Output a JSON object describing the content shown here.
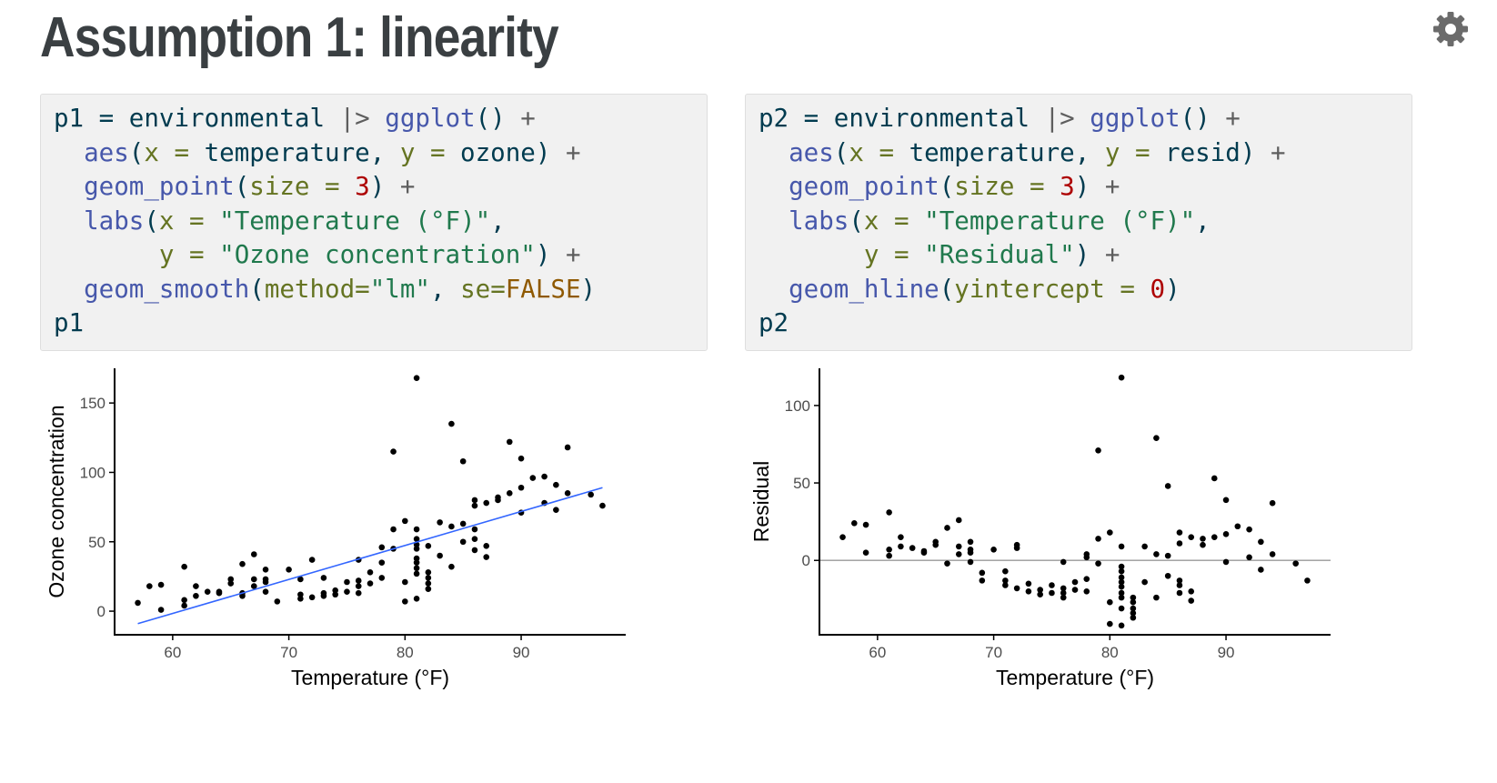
{
  "slide": {
    "title": "Assumption 1: linearity"
  },
  "icons": {
    "settings": "gear-icon"
  },
  "code_blocks": [
    {
      "id": "p1",
      "lines": [
        [
          [
            "p1 = environmental ",
            "plain"
          ],
          [
            "|>",
            "op"
          ],
          [
            " ",
            "plain"
          ],
          [
            "ggplot",
            "fn"
          ],
          [
            "() ",
            "plain"
          ],
          [
            "+",
            "op"
          ]
        ],
        [
          [
            "  ",
            "plain"
          ],
          [
            "aes",
            "fn"
          ],
          [
            "(",
            "plain"
          ],
          [
            "x =",
            "ar"
          ],
          [
            " temperature, ",
            "plain"
          ],
          [
            "y =",
            "ar"
          ],
          [
            " ozone) ",
            "plain"
          ],
          [
            "+",
            "op"
          ]
        ],
        [
          [
            "  ",
            "plain"
          ],
          [
            "geom_point",
            "fn"
          ],
          [
            "(",
            "plain"
          ],
          [
            "size =",
            "ar"
          ],
          [
            " ",
            "plain"
          ],
          [
            "3",
            "nm"
          ],
          [
            ") ",
            "plain"
          ],
          [
            "+",
            "op"
          ]
        ],
        [
          [
            "  ",
            "plain"
          ],
          [
            "labs",
            "fn"
          ],
          [
            "(",
            "plain"
          ],
          [
            "x =",
            "ar"
          ],
          [
            " ",
            "plain"
          ],
          [
            "\"Temperature (°F)\"",
            "st"
          ],
          [
            ",",
            "plain"
          ]
        ],
        [
          [
            "       ",
            "plain"
          ],
          [
            "y =",
            "ar"
          ],
          [
            " ",
            "plain"
          ],
          [
            "\"Ozone concentration\"",
            "st"
          ],
          [
            ") ",
            "plain"
          ],
          [
            "+",
            "op"
          ]
        ],
        [
          [
            "  ",
            "plain"
          ],
          [
            "geom_smooth",
            "fn"
          ],
          [
            "(",
            "plain"
          ],
          [
            "method=",
            "ar"
          ],
          [
            "\"lm\"",
            "st"
          ],
          [
            ", ",
            "plain"
          ],
          [
            "se=",
            "ar"
          ],
          [
            "FALSE",
            "cn"
          ],
          [
            ")",
            "plain"
          ]
        ],
        [
          [
            "p1",
            "plain"
          ]
        ]
      ]
    },
    {
      "id": "p2",
      "lines": [
        [
          [
            "p2 = environmental ",
            "plain"
          ],
          [
            "|>",
            "op"
          ],
          [
            " ",
            "plain"
          ],
          [
            "ggplot",
            "fn"
          ],
          [
            "() ",
            "plain"
          ],
          [
            "+",
            "op"
          ]
        ],
        [
          [
            "  ",
            "plain"
          ],
          [
            "aes",
            "fn"
          ],
          [
            "(",
            "plain"
          ],
          [
            "x =",
            "ar"
          ],
          [
            " temperature, ",
            "plain"
          ],
          [
            "y =",
            "ar"
          ],
          [
            " resid) ",
            "plain"
          ],
          [
            "+",
            "op"
          ]
        ],
        [
          [
            "  ",
            "plain"
          ],
          [
            "geom_point",
            "fn"
          ],
          [
            "(",
            "plain"
          ],
          [
            "size =",
            "ar"
          ],
          [
            " ",
            "plain"
          ],
          [
            "3",
            "nm"
          ],
          [
            ") ",
            "plain"
          ],
          [
            "+",
            "op"
          ]
        ],
        [
          [
            "  ",
            "plain"
          ],
          [
            "labs",
            "fn"
          ],
          [
            "(",
            "plain"
          ],
          [
            "x =",
            "ar"
          ],
          [
            " ",
            "plain"
          ],
          [
            "\"Temperature (°F)\"",
            "st"
          ],
          [
            ",",
            "plain"
          ]
        ],
        [
          [
            "       ",
            "plain"
          ],
          [
            "y =",
            "ar"
          ],
          [
            " ",
            "plain"
          ],
          [
            "\"Residual\"",
            "st"
          ],
          [
            ") ",
            "plain"
          ],
          [
            "+",
            "op"
          ]
        ],
        [
          [
            "  ",
            "plain"
          ],
          [
            "geom_hline",
            "fn"
          ],
          [
            "(",
            "plain"
          ],
          [
            "yintercept =",
            "ar"
          ],
          [
            " ",
            "plain"
          ],
          [
            "0",
            "nm"
          ],
          [
            ")",
            "plain"
          ]
        ],
        [
          [
            "p2",
            "plain"
          ]
        ]
      ]
    }
  ],
  "colors": {
    "fn": "#4758ab",
    "ar": "#657422",
    "st": "#20794d",
    "nm": "#ad0000",
    "cn": "#8f5902",
    "op": "#5e5e5e",
    "point": "#000000",
    "smooth_line": "#3366ff",
    "hline": "#999999",
    "axis": "#000000",
    "tick_label": "#4d4d4d"
  },
  "chart_data": [
    {
      "type": "scatter",
      "xlabel": "Temperature (°F)",
      "ylabel": "Ozone concentration",
      "xlim": [
        55,
        99
      ],
      "ylim": [
        -17,
        175
      ],
      "xticks": [
        60,
        70,
        80,
        90
      ],
      "yticks": [
        0,
        50,
        100,
        150
      ],
      "grid": false,
      "smooth": {
        "method": "lm",
        "x": [
          57,
          97
        ],
        "y": [
          -9,
          89
        ]
      },
      "points": [
        [
          57,
          6
        ],
        [
          58,
          18
        ],
        [
          59,
          1
        ],
        [
          59,
          19
        ],
        [
          61,
          4
        ],
        [
          61,
          8
        ],
        [
          61,
          32
        ],
        [
          62,
          11
        ],
        [
          62,
          18
        ],
        [
          63,
          14
        ],
        [
          64,
          13
        ],
        [
          64,
          14
        ],
        [
          65,
          20
        ],
        [
          65,
          23
        ],
        [
          66,
          11
        ],
        [
          66,
          13
        ],
        [
          66,
          34
        ],
        [
          67,
          18
        ],
        [
          67,
          23
        ],
        [
          67,
          41
        ],
        [
          68,
          14
        ],
        [
          68,
          21
        ],
        [
          68,
          23
        ],
        [
          68,
          30
        ],
        [
          69,
          7
        ],
        [
          70,
          30
        ],
        [
          71,
          9
        ],
        [
          71,
          12
        ],
        [
          71,
          23
        ],
        [
          72,
          10
        ],
        [
          72,
          37
        ],
        [
          73,
          11
        ],
        [
          73,
          13
        ],
        [
          73,
          24
        ],
        [
          74,
          12
        ],
        [
          74,
          15
        ],
        [
          75,
          14
        ],
        [
          75,
          21
        ],
        [
          76,
          13
        ],
        [
          76,
          18
        ],
        [
          76,
          22
        ],
        [
          76,
          37
        ],
        [
          77,
          20
        ],
        [
          77,
          28
        ],
        [
          78,
          24
        ],
        [
          78,
          35
        ],
        [
          78,
          46
        ],
        [
          79,
          45
        ],
        [
          79,
          59
        ],
        [
          79,
          115
        ],
        [
          80,
          7
        ],
        [
          80,
          21
        ],
        [
          80,
          65
        ],
        [
          81,
          9
        ],
        [
          81,
          27
        ],
        [
          81,
          31
        ],
        [
          81,
          35
        ],
        [
          81,
          38
        ],
        [
          81,
          45
        ],
        [
          81,
          48
        ],
        [
          81,
          52
        ],
        [
          81,
          59
        ],
        [
          81,
          168
        ],
        [
          82,
          16
        ],
        [
          82,
          20
        ],
        [
          82,
          24
        ],
        [
          82,
          28
        ],
        [
          82,
          47
        ],
        [
          83,
          40
        ],
        [
          83,
          64
        ],
        [
          84,
          32
        ],
        [
          84,
          61
        ],
        [
          84,
          135
        ],
        [
          85,
          50
        ],
        [
          85,
          63
        ],
        [
          85,
          108
        ],
        [
          86,
          44
        ],
        [
          86,
          52
        ],
        [
          86,
          59
        ],
        [
          86,
          76
        ],
        [
          86,
          80
        ],
        [
          87,
          39
        ],
        [
          87,
          47
        ],
        [
          87,
          78
        ],
        [
          88,
          80
        ],
        [
          88,
          82
        ],
        [
          89,
          85
        ],
        [
          89,
          122
        ],
        [
          90,
          71
        ],
        [
          90,
          89
        ],
        [
          90,
          110
        ],
        [
          91,
          96
        ],
        [
          92,
          78
        ],
        [
          92,
          97
        ],
        [
          93,
          73
        ],
        [
          93,
          91
        ],
        [
          94,
          85
        ],
        [
          94,
          118
        ],
        [
          96,
          84
        ],
        [
          97,
          76
        ]
      ]
    },
    {
      "type": "scatter",
      "xlabel": "Temperature (°F)",
      "ylabel": "Residual",
      "xlim": [
        55,
        99
      ],
      "ylim": [
        -48,
        124
      ],
      "xticks": [
        60,
        70,
        80,
        90
      ],
      "yticks": [
        0,
        50,
        100
      ],
      "grid": false,
      "hline": 0,
      "points": [
        [
          57,
          15
        ],
        [
          58,
          24
        ],
        [
          59,
          5
        ],
        [
          59,
          23
        ],
        [
          61,
          3
        ],
        [
          61,
          7
        ],
        [
          61,
          31
        ],
        [
          62,
          9
        ],
        [
          62,
          15
        ],
        [
          63,
          8
        ],
        [
          64,
          6
        ],
        [
          64,
          5
        ],
        [
          65,
          10
        ],
        [
          65,
          12
        ],
        [
          66,
          -2
        ],
        [
          66,
          21
        ],
        [
          67,
          4
        ],
        [
          67,
          9
        ],
        [
          67,
          26
        ],
        [
          68,
          -1
        ],
        [
          68,
          5
        ],
        [
          68,
          7
        ],
        [
          68,
          12
        ],
        [
          69,
          -8
        ],
        [
          69,
          -13
        ],
        [
          70,
          7
        ],
        [
          71,
          -7
        ],
        [
          71,
          -13
        ],
        [
          71,
          -16
        ],
        [
          72,
          -18
        ],
        [
          72,
          8
        ],
        [
          72,
          10
        ],
        [
          73,
          -15
        ],
        [
          73,
          -20
        ],
        [
          74,
          -19
        ],
        [
          74,
          -22
        ],
        [
          75,
          -21
        ],
        [
          75,
          -16
        ],
        [
          76,
          -21
        ],
        [
          76,
          -18
        ],
        [
          76,
          -24
        ],
        [
          76,
          -1
        ],
        [
          77,
          -14
        ],
        [
          77,
          -19
        ],
        [
          78,
          -20
        ],
        [
          78,
          -12
        ],
        [
          78,
          2
        ],
        [
          78,
          4
        ],
        [
          79,
          -2
        ],
        [
          79,
          14
        ],
        [
          79,
          71
        ],
        [
          80,
          -27
        ],
        [
          80,
          -41
        ],
        [
          80,
          18
        ],
        [
          81,
          -42
        ],
        [
          81,
          -31
        ],
        [
          81,
          -24
        ],
        [
          81,
          -21
        ],
        [
          81,
          -17
        ],
        [
          81,
          -14
        ],
        [
          81,
          -11
        ],
        [
          81,
          -7
        ],
        [
          81,
          -4
        ],
        [
          81,
          9
        ],
        [
          81,
          118
        ],
        [
          82,
          -27
        ],
        [
          82,
          -31
        ],
        [
          82,
          -34
        ],
        [
          82,
          -37
        ],
        [
          82,
          -24
        ],
        [
          83,
          -14
        ],
        [
          83,
          9
        ],
        [
          84,
          -24
        ],
        [
          84,
          4
        ],
        [
          84,
          79
        ],
        [
          85,
          -10
        ],
        [
          85,
          3
        ],
        [
          85,
          48
        ],
        [
          86,
          -13
        ],
        [
          86,
          -16
        ],
        [
          86,
          -21
        ],
        [
          86,
          11
        ],
        [
          86,
          18
        ],
        [
          87,
          -26
        ],
        [
          87,
          -20
        ],
        [
          87,
          15
        ],
        [
          88,
          10
        ],
        [
          88,
          14
        ],
        [
          89,
          15
        ],
        [
          89,
          53
        ],
        [
          90,
          -1
        ],
        [
          90,
          17
        ],
        [
          90,
          39
        ],
        [
          91,
          22
        ],
        [
          92,
          2
        ],
        [
          92,
          20
        ],
        [
          93,
          -6
        ],
        [
          93,
          12
        ],
        [
          94,
          4
        ],
        [
          94,
          37
        ],
        [
          96,
          -2
        ],
        [
          97,
          -13
        ]
      ]
    }
  ]
}
